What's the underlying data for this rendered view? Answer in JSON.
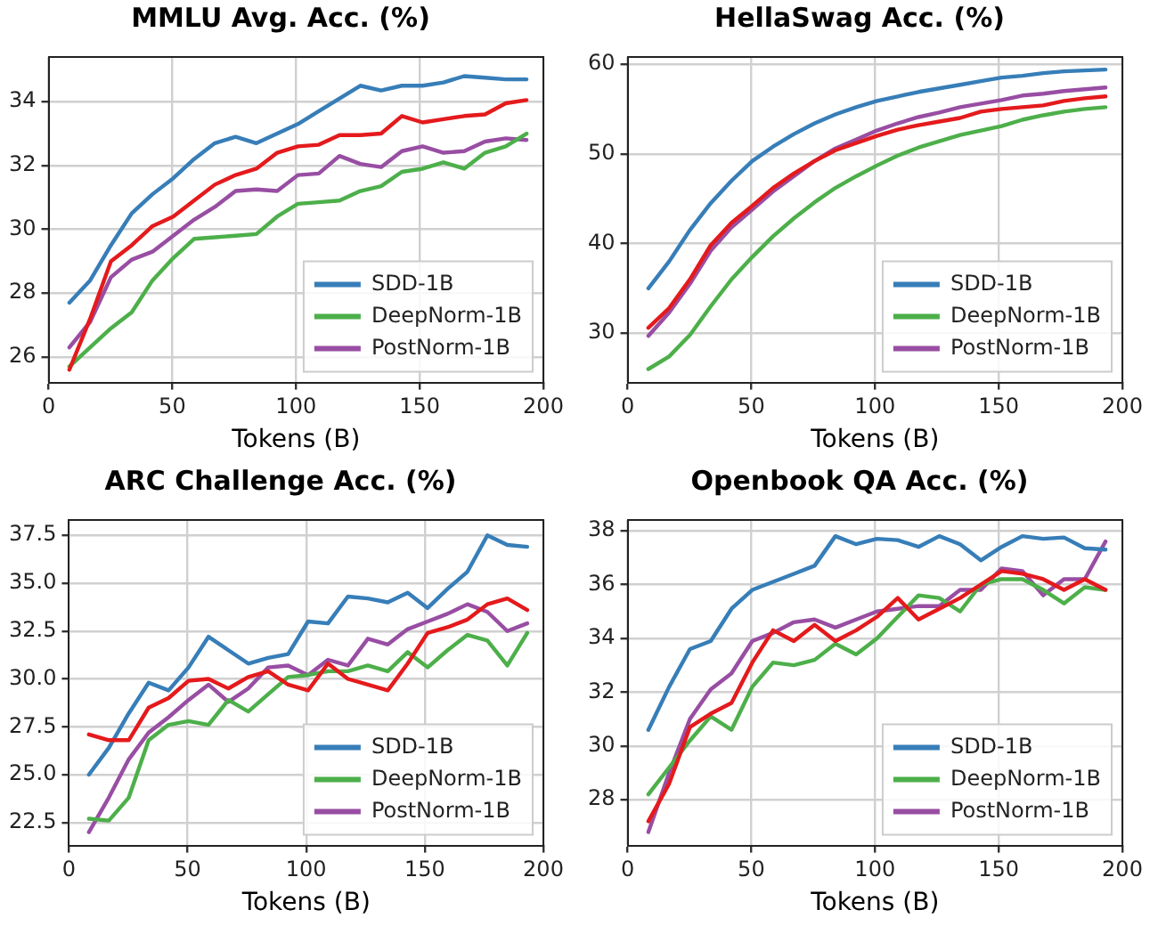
{
  "chart_data": [
    {
      "type": "line",
      "title": "MMLU Avg. Acc. (%)",
      "xlabel": "Tokens (B)",
      "x": [
        8.4,
        16.8,
        25.2,
        33.6,
        42,
        50.4,
        58.8,
        67.2,
        75.6,
        84,
        92.4,
        100.8,
        109.2,
        117.6,
        126,
        134.4,
        142.8,
        151.2,
        159.6,
        168,
        176.4,
        184.8,
        193.2
      ],
      "xlim": [
        0,
        200
      ],
      "xticks": [
        0,
        50,
        100,
        150,
        200
      ],
      "ylim": [
        25.2,
        35.4
      ],
      "yticks": [
        26,
        28,
        30,
        32,
        34
      ],
      "grid": true,
      "legend": "bottom right",
      "series": [
        {
          "color": "#e41a1c",
          "values": [
            25.6,
            27.2,
            29.0,
            29.5,
            30.1,
            30.4,
            30.9,
            31.4,
            31.7,
            31.9,
            32.4,
            32.6,
            32.65,
            32.95,
            32.95,
            33.0,
            33.55,
            33.35,
            33.45,
            33.55,
            33.6,
            33.95,
            34.05
          ]
        },
        {
          "name": "SDD-1B",
          "color": "#377eb8",
          "values": [
            27.7,
            28.4,
            29.5,
            30.5,
            31.1,
            31.6,
            32.2,
            32.7,
            32.9,
            32.7,
            33.0,
            33.3,
            33.7,
            34.1,
            34.5,
            34.35,
            34.5,
            34.5,
            34.6,
            34.8,
            34.75,
            34.7,
            34.7
          ]
        },
        {
          "name": "DeepNorm-1B",
          "color": "#4daf4a",
          "values": [
            25.7,
            26.3,
            26.9,
            27.4,
            28.4,
            29.1,
            29.7,
            29.75,
            29.8,
            29.85,
            30.4,
            30.8,
            30.85,
            30.9,
            31.2,
            31.35,
            31.8,
            31.9,
            32.1,
            31.9,
            32.4,
            32.6,
            33.0
          ]
        },
        {
          "name": "PostNorm-1B",
          "color": "#984ea3",
          "values": [
            26.3,
            27.1,
            28.5,
            29.05,
            29.3,
            29.8,
            30.3,
            30.7,
            31.2,
            31.25,
            31.2,
            31.7,
            31.75,
            32.3,
            32.05,
            31.95,
            32.45,
            32.6,
            32.4,
            32.45,
            32.75,
            32.85,
            32.8
          ]
        }
      ]
    },
    {
      "type": "line",
      "title": "HellaSwag Acc. (%)",
      "xlabel": "Tokens (B)",
      "x": [
        8.4,
        16.8,
        25.2,
        33.6,
        42,
        50.4,
        58.8,
        67.2,
        75.6,
        84,
        92.4,
        100.8,
        109.2,
        117.6,
        126,
        134.4,
        142.8,
        151.2,
        159.6,
        168,
        176.4,
        184.8,
        193.2
      ],
      "xlim": [
        0,
        200
      ],
      "xticks": [
        0,
        50,
        100,
        150,
        200
      ],
      "ylim": [
        24.5,
        60.8
      ],
      "yticks": [
        30,
        40,
        50,
        60
      ],
      "grid": true,
      "legend": "bottom right",
      "series": [
        {
          "color": "#e41a1c",
          "values": [
            30.6,
            32.8,
            36,
            39.8,
            42.3,
            44.2,
            46.2,
            47.8,
            49.2,
            50.4,
            51.2,
            52,
            52.7,
            53.2,
            53.6,
            54,
            54.7,
            55,
            55.2,
            55.4,
            55.9,
            56.2,
            56.4
          ]
        },
        {
          "name": "SDD-1B",
          "color": "#377eb8",
          "values": [
            35,
            38,
            41.5,
            44.5,
            47,
            49.2,
            50.8,
            52.2,
            53.4,
            54.4,
            55.2,
            55.9,
            56.4,
            56.9,
            57.3,
            57.7,
            58.1,
            58.5,
            58.7,
            59,
            59.2,
            59.3,
            59.4
          ]
        },
        {
          "name": "DeepNorm-1B",
          "color": "#4daf4a",
          "values": [
            26,
            27.4,
            29.8,
            33,
            36,
            38.5,
            40.8,
            42.8,
            44.6,
            46.2,
            47.5,
            48.7,
            49.8,
            50.7,
            51.4,
            52.1,
            52.6,
            53.1,
            53.8,
            54.3,
            54.7,
            55,
            55.2
          ]
        },
        {
          "name": "PostNorm-1B",
          "color": "#984ea3",
          "values": [
            29.7,
            32.3,
            35.5,
            39.2,
            41.8,
            43.8,
            45.8,
            47.5,
            49.2,
            50.6,
            51.6,
            52.6,
            53.4,
            54.1,
            54.6,
            55.2,
            55.6,
            56,
            56.5,
            56.7,
            57,
            57.2,
            57.4
          ]
        }
      ]
    },
    {
      "type": "line",
      "title": "ARC Challenge Acc. (%)",
      "xlabel": "Tokens (B)",
      "x": [
        8.4,
        16.8,
        25.2,
        33.6,
        42,
        50.4,
        58.8,
        67.2,
        75.6,
        84,
        92.4,
        100.8,
        109.2,
        117.6,
        126,
        134.4,
        142.8,
        151.2,
        159.6,
        168,
        176.4,
        184.8,
        193.2
      ],
      "xlim": [
        0,
        200
      ],
      "xticks": [
        0,
        50,
        100,
        150,
        200
      ],
      "ylim": [
        21.3,
        38.3
      ],
      "yticks": [
        22.5,
        {
          "value": 25,
          "label": "25.0"
        },
        27.5,
        {
          "value": 30,
          "label": "30.0"
        },
        32.5,
        {
          "value": 35,
          "label": "35.0"
        },
        37.5
      ],
      "grid": true,
      "legend": "bottom right",
      "series": [
        {
          "color": "#e41a1c",
          "values": [
            27.1,
            26.8,
            26.8,
            28.5,
            29.0,
            29.9,
            30.0,
            29.5,
            30.1,
            30.4,
            29.7,
            29.4,
            30.8,
            30.0,
            29.7,
            29.4,
            30.8,
            32.4,
            32.7,
            33.1,
            33.9,
            34.2,
            33.6
          ]
        },
        {
          "name": "SDD-1B",
          "color": "#377eb8",
          "values": [
            25.0,
            26.4,
            28.2,
            29.8,
            29.4,
            30.6,
            32.2,
            31.5,
            30.8,
            31.1,
            31.3,
            33.0,
            32.9,
            34.3,
            34.2,
            34.0,
            34.5,
            33.7,
            34.7,
            35.6,
            37.5,
            37.0,
            36.9
          ]
        },
        {
          "name": "DeepNorm-1B",
          "color": "#4daf4a",
          "values": [
            22.7,
            22.6,
            23.8,
            26.8,
            27.6,
            27.8,
            27.6,
            28.9,
            28.3,
            29.2,
            30.1,
            30.2,
            30.4,
            30.4,
            30.7,
            30.4,
            31.4,
            30.6,
            31.5,
            32.3,
            32.0,
            30.7,
            32.4
          ]
        },
        {
          "name": "PostNorm-1B",
          "color": "#984ea3",
          "values": [
            22.0,
            23.8,
            25.8,
            27.2,
            28.0,
            28.9,
            29.7,
            28.8,
            29.5,
            30.6,
            30.7,
            30.2,
            31.0,
            30.7,
            32.1,
            31.8,
            32.6,
            33.0,
            33.4,
            33.9,
            33.5,
            32.5,
            32.9
          ]
        }
      ]
    },
    {
      "type": "line",
      "title": "Openbook QA Acc. (%)",
      "xlabel": "Tokens (B)",
      "x": [
        8.4,
        16.8,
        25.2,
        33.6,
        42,
        50.4,
        58.8,
        67.2,
        75.6,
        84,
        92.4,
        100.8,
        109.2,
        117.6,
        126,
        134.4,
        142.8,
        151.2,
        159.6,
        168,
        176.4,
        184.8,
        193.2
      ],
      "xlim": [
        0,
        200
      ],
      "xticks": [
        0,
        50,
        100,
        150,
        200
      ],
      "ylim": [
        26.3,
        38.4
      ],
      "yticks": [
        28,
        30,
        32,
        34,
        36,
        38
      ],
      "grid": true,
      "legend": "bottom right",
      "series": [
        {
          "color": "#e41a1c",
          "values": [
            27.2,
            28.6,
            30.7,
            31.2,
            31.6,
            33.1,
            34.3,
            33.9,
            34.5,
            33.9,
            34.3,
            34.8,
            35.5,
            34.7,
            35.1,
            35.5,
            36.0,
            36.5,
            36.4,
            36.2,
            35.8,
            36.2,
            35.8
          ]
        },
        {
          "name": "SDD-1B",
          "color": "#377eb8",
          "values": [
            30.6,
            32.2,
            33.6,
            33.9,
            35.1,
            35.8,
            36.1,
            36.4,
            36.7,
            37.8,
            37.5,
            37.7,
            37.65,
            37.4,
            37.8,
            37.5,
            36.9,
            37.4,
            37.8,
            37.7,
            37.75,
            37.35,
            37.3
          ]
        },
        {
          "name": "DeepNorm-1B",
          "color": "#4daf4a",
          "values": [
            28.2,
            29.2,
            30.2,
            31.1,
            30.6,
            32.2,
            33.1,
            33.0,
            33.2,
            33.8,
            33.4,
            34.0,
            34.8,
            35.6,
            35.5,
            35.0,
            36.0,
            36.2,
            36.2,
            35.8,
            35.3,
            35.9,
            35.8
          ]
        },
        {
          "name": "PostNorm-1B",
          "color": "#984ea3",
          "values": [
            26.8,
            29.0,
            31.0,
            32.1,
            32.7,
            33.9,
            34.2,
            34.6,
            34.7,
            34.4,
            34.7,
            35.0,
            35.1,
            35.2,
            35.2,
            35.8,
            35.8,
            36.6,
            36.5,
            35.6,
            36.2,
            36.2,
            37.6
          ]
        }
      ]
    }
  ]
}
